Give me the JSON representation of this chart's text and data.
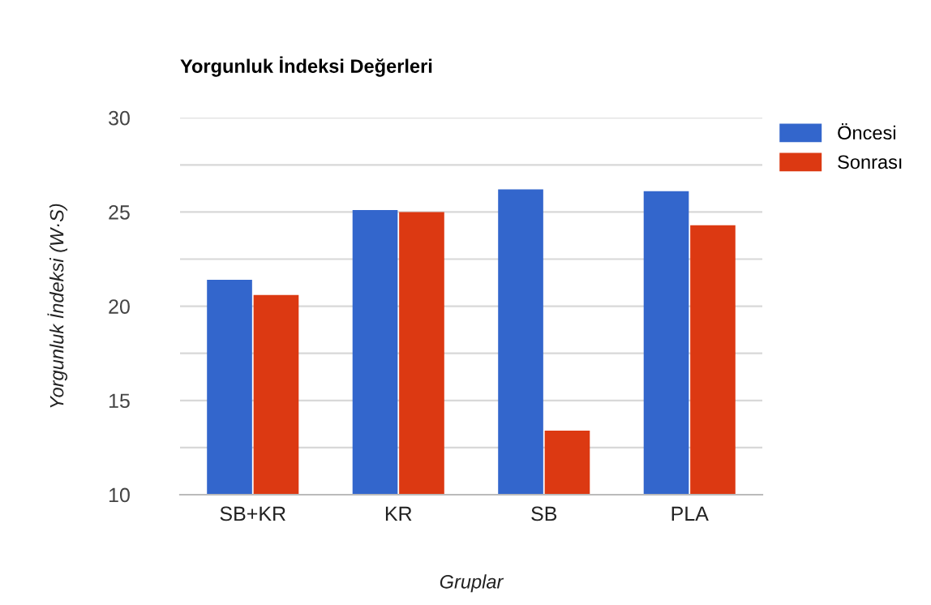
{
  "chart_data": {
    "type": "bar",
    "title": "Yorgunluk İndeksi Değerleri",
    "xlabel": "Gruplar",
    "ylabel": "Yorgunluk İndeksi (W·S)",
    "categories": [
      "SB+KR",
      "KR",
      "SB",
      "PLA"
    ],
    "series": [
      {
        "name": "Öncesi",
        "color": "#3366cc",
        "values": [
          21.4,
          25.1,
          26.2,
          26.1
        ]
      },
      {
        "name": "Sonrası",
        "color": "#dc3912",
        "values": [
          20.6,
          25.0,
          13.4,
          24.3
        ]
      }
    ],
    "ylim": [
      10,
      30
    ],
    "yticks": [
      10,
      {
        "value": 12.5,
        "label": null
      },
      15,
      {
        "value": 17.5,
        "label": null
      },
      20,
      {
        "value": 22.5,
        "label": null
      },
      25,
      {
        "value": 27.5,
        "label": null
      },
      30
    ],
    "grid": "y",
    "legend": "top right"
  }
}
